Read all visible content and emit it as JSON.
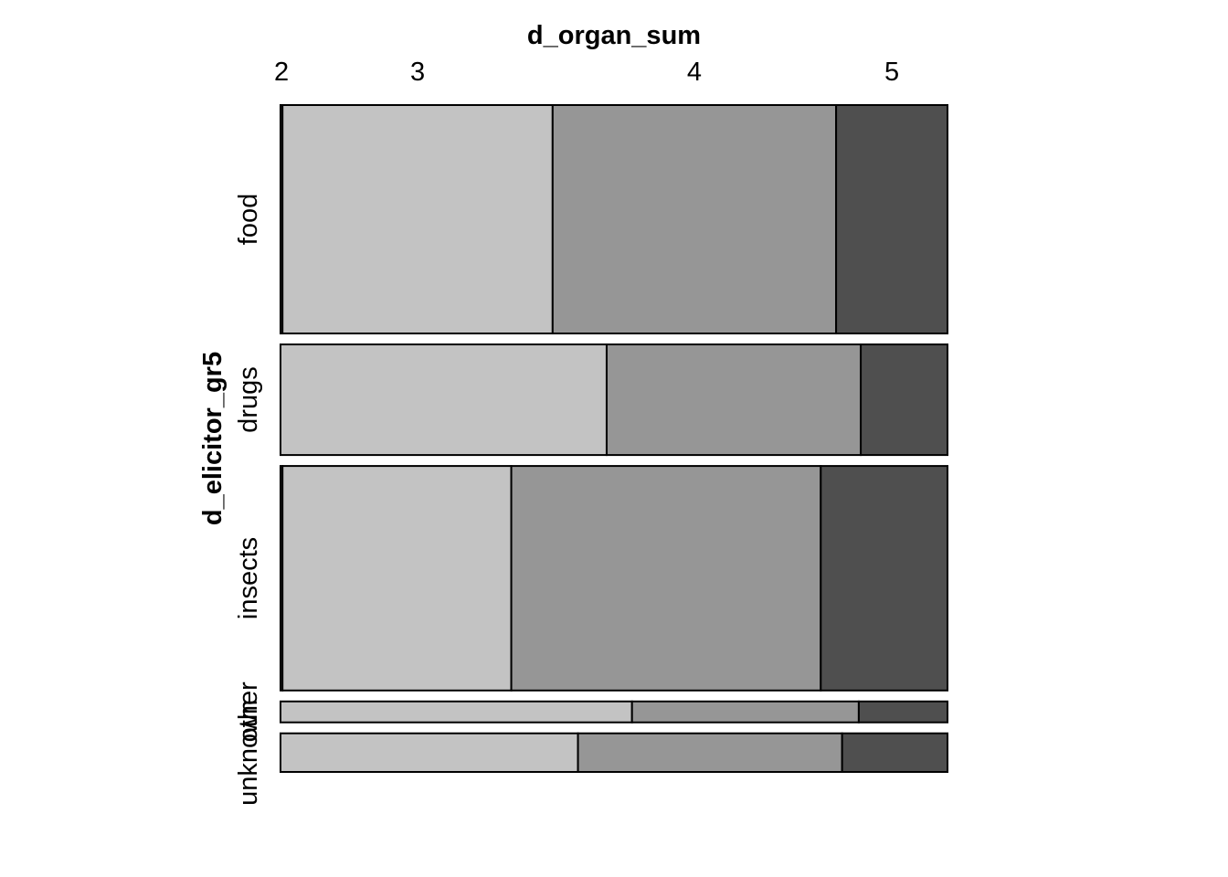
{
  "chart_data": {
    "type": "mosaic",
    "xlabel": "d_organ_sum",
    "ylabel": "d_elicitor_gr5",
    "columns": [
      "2",
      "3",
      "4",
      "5"
    ],
    "rows": [
      "food",
      "drugs",
      "insects",
      "other",
      "unknown"
    ],
    "row_shares": [
      0.349,
      0.169,
      0.343,
      0.032,
      0.059
    ],
    "proportions": [
      [
        0.003,
        0.405,
        0.425,
        0.167
      ],
      [
        0.0,
        0.489,
        0.381,
        0.13
      ],
      [
        0.003,
        0.343,
        0.464,
        0.19
      ],
      [
        0.0,
        0.527,
        0.34,
        0.133
      ],
      [
        0.0,
        0.446,
        0.396,
        0.158
      ]
    ],
    "fill_colors": [
      "#e8e8e8",
      "#c3c3c3",
      "#969696",
      "#4f4f4f"
    ],
    "border_color": "#000000"
  }
}
